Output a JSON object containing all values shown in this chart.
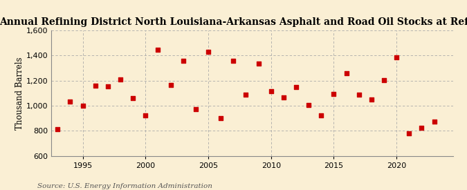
{
  "title": "Annual Refining District North Louisiana-Arkansas Asphalt and Road Oil Stocks at Refineries",
  "ylabel": "Thousand Barrels",
  "source": "Source: U.S. Energy Information Administration",
  "background_color": "#faefd4",
  "years": [
    1993,
    1994,
    1995,
    1996,
    1997,
    1998,
    1999,
    2000,
    2001,
    2002,
    2003,
    2004,
    2005,
    2006,
    2007,
    2008,
    2009,
    2010,
    2011,
    2012,
    2013,
    2014,
    2015,
    2016,
    2017,
    2018,
    2019,
    2020,
    2021,
    2022,
    2023
  ],
  "values": [
    810,
    1035,
    1000,
    1160,
    1155,
    1210,
    1060,
    920,
    1445,
    1165,
    1355,
    970,
    1430,
    900,
    1355,
    1085,
    1335,
    1115,
    1065,
    1150,
    1005,
    920,
    1095,
    1260,
    1085,
    1050,
    1205,
    1385,
    780,
    825,
    875
  ],
  "marker_color": "#cc0000",
  "marker_size": 18,
  "ylim": [
    600,
    1600
  ],
  "yticks": [
    600,
    800,
    1000,
    1200,
    1400,
    1600
  ],
  "xlim": [
    1992.5,
    2024.5
  ],
  "xticks": [
    1995,
    2000,
    2005,
    2010,
    2015,
    2020
  ],
  "grid_color": "#aaaaaa",
  "title_fontsize": 10,
  "axis_fontsize": 8.5,
  "tick_fontsize": 8,
  "source_fontsize": 7.5
}
